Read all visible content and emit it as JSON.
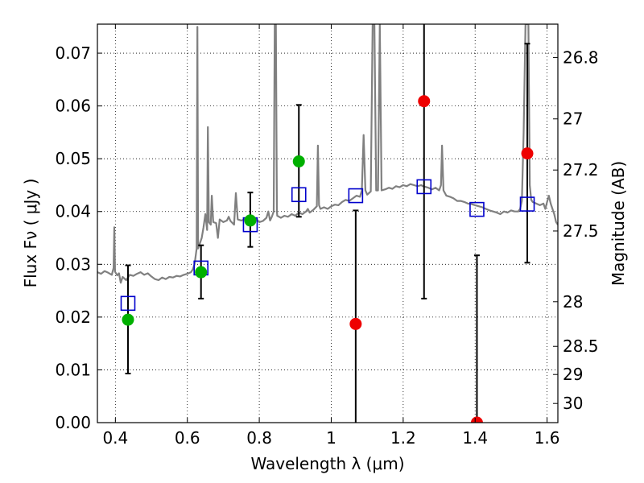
{
  "chart_data": {
    "type": "scatter",
    "xlabel": "Wavelength  λ (μm)",
    "ylabel": "Flux  Fν  ( μJy )",
    "ylabel_right": "Magnitude (AB)",
    "xlim": [
      0.35,
      1.63
    ],
    "ylim": [
      0.0,
      0.0755
    ],
    "grid": true,
    "x_ticks": [
      0.4,
      0.6,
      0.8,
      1.0,
      1.2,
      1.4,
      1.6
    ],
    "x_tick_labels": [
      "0.4",
      "0.6",
      "0.8",
      "1",
      "1.2",
      "1.4",
      "1.6"
    ],
    "y_ticks": [
      0.0,
      0.01,
      0.02,
      0.03,
      0.04,
      0.05,
      0.06,
      0.07
    ],
    "y_tick_labels": [
      "0.00",
      "0.01",
      "0.02",
      "0.03",
      "0.04",
      "0.05",
      "0.06",
      "0.07"
    ],
    "right_ticks": [
      26.8,
      27.0,
      27.2,
      27.5,
      28.0,
      28.5,
      29.0,
      30.0
    ],
    "right_tick_labels": [
      "26.8",
      "27",
      "27.2",
      "27.5",
      "28",
      "28.5",
      "29",
      "30"
    ],
    "colors": {
      "spectrum": "#808080",
      "model": "#0000cc",
      "observed_detected": "#00b000",
      "observed_nondetected": "#ee0000",
      "errorbar": "#000000"
    },
    "series": [
      {
        "kind": "line",
        "color": "#808080",
        "points": [
          [
            0.35,
            0.0285
          ],
          [
            0.36,
            0.0282
          ],
          [
            0.37,
            0.0287
          ],
          [
            0.38,
            0.0284
          ],
          [
            0.39,
            0.028
          ],
          [
            0.395,
            0.0293
          ],
          [
            0.397,
            0.037
          ],
          [
            0.399,
            0.0286
          ],
          [
            0.405,
            0.0279
          ],
          [
            0.41,
            0.0283
          ],
          [
            0.415,
            0.0265
          ],
          [
            0.42,
            0.0276
          ],
          [
            0.43,
            0.027
          ],
          [
            0.44,
            0.028
          ],
          [
            0.45,
            0.0278
          ],
          [
            0.46,
            0.0282
          ],
          [
            0.47,
            0.0285
          ],
          [
            0.48,
            0.028
          ],
          [
            0.49,
            0.0283
          ],
          [
            0.5,
            0.0277
          ],
          [
            0.51,
            0.0272
          ],
          [
            0.52,
            0.027
          ],
          [
            0.53,
            0.0275
          ],
          [
            0.54,
            0.0272
          ],
          [
            0.55,
            0.0276
          ],
          [
            0.56,
            0.0275
          ],
          [
            0.57,
            0.0278
          ],
          [
            0.58,
            0.0277
          ],
          [
            0.59,
            0.028
          ],
          [
            0.6,
            0.0282
          ],
          [
            0.61,
            0.0285
          ],
          [
            0.615,
            0.029
          ],
          [
            0.62,
            0.03
          ],
          [
            0.626,
            0.033
          ],
          [
            0.628,
            0.075
          ],
          [
            0.63,
            0.033
          ],
          [
            0.635,
            0.034
          ],
          [
            0.64,
            0.035
          ],
          [
            0.645,
            0.037
          ],
          [
            0.65,
            0.0395
          ],
          [
            0.655,
            0.0365
          ],
          [
            0.657,
            0.056
          ],
          [
            0.66,
            0.038
          ],
          [
            0.665,
            0.0375
          ],
          [
            0.668,
            0.043
          ],
          [
            0.672,
            0.038
          ],
          [
            0.68,
            0.0378
          ],
          [
            0.685,
            0.035
          ],
          [
            0.69,
            0.0385
          ],
          [
            0.7,
            0.038
          ],
          [
            0.71,
            0.0383
          ],
          [
            0.715,
            0.039
          ],
          [
            0.72,
            0.0382
          ],
          [
            0.73,
            0.0375
          ],
          [
            0.735,
            0.0435
          ],
          [
            0.74,
            0.0385
          ],
          [
            0.75,
            0.0383
          ],
          [
            0.76,
            0.0385
          ],
          [
            0.77,
            0.0378
          ],
          [
            0.78,
            0.0382
          ],
          [
            0.79,
            0.0387
          ],
          [
            0.8,
            0.038
          ],
          [
            0.81,
            0.0382
          ],
          [
            0.82,
            0.0388
          ],
          [
            0.825,
            0.04
          ],
          [
            0.83,
            0.0383
          ],
          [
            0.835,
            0.039
          ],
          [
            0.84,
            0.04
          ],
          [
            0.843,
            0.0755
          ],
          [
            0.846,
            0.0755
          ],
          [
            0.849,
            0.04
          ],
          [
            0.85,
            0.0392
          ],
          [
            0.86,
            0.0388
          ],
          [
            0.87,
            0.0392
          ],
          [
            0.88,
            0.039
          ],
          [
            0.89,
            0.0395
          ],
          [
            0.9,
            0.0392
          ],
          [
            0.91,
            0.0398
          ],
          [
            0.92,
            0.0395
          ],
          [
            0.93,
            0.04
          ],
          [
            0.935,
            0.0405
          ],
          [
            0.94,
            0.0398
          ],
          [
            0.95,
            0.0403
          ],
          [
            0.96,
            0.041
          ],
          [
            0.963,
            0.0525
          ],
          [
            0.966,
            0.0412
          ],
          [
            0.97,
            0.0405
          ],
          [
            0.98,
            0.0408
          ],
          [
            0.99,
            0.0405
          ],
          [
            1.0,
            0.041
          ],
          [
            1.01,
            0.0413
          ],
          [
            1.02,
            0.0412
          ],
          [
            1.03,
            0.0418
          ],
          [
            1.04,
            0.0422
          ],
          [
            1.05,
            0.042
          ],
          [
            1.06,
            0.0425
          ],
          [
            1.07,
            0.043
          ],
          [
            1.08,
            0.0428
          ],
          [
            1.085,
            0.044
          ],
          [
            1.09,
            0.0545
          ],
          [
            1.095,
            0.044
          ],
          [
            1.1,
            0.0432
          ],
          [
            1.11,
            0.0438
          ],
          [
            1.115,
            0.0755
          ],
          [
            1.12,
            0.0755
          ],
          [
            1.125,
            0.044
          ],
          [
            1.13,
            0.044
          ],
          [
            1.135,
            0.0755
          ],
          [
            1.14,
            0.044
          ],
          [
            1.15,
            0.0442
          ],
          [
            1.16,
            0.0445
          ],
          [
            1.17,
            0.0443
          ],
          [
            1.18,
            0.0448
          ],
          [
            1.19,
            0.0446
          ],
          [
            1.2,
            0.045
          ],
          [
            1.21,
            0.0448
          ],
          [
            1.22,
            0.0452
          ],
          [
            1.23,
            0.045
          ],
          [
            1.24,
            0.0448
          ],
          [
            1.25,
            0.045
          ],
          [
            1.255,
            0.0448
          ],
          [
            1.26,
            0.0447
          ],
          [
            1.27,
            0.0445
          ],
          [
            1.28,
            0.0442
          ],
          [
            1.29,
            0.0445
          ],
          [
            1.3,
            0.044
          ],
          [
            1.305,
            0.045
          ],
          [
            1.308,
            0.0525
          ],
          [
            1.312,
            0.044
          ],
          [
            1.32,
            0.043
          ],
          [
            1.33,
            0.0428
          ],
          [
            1.34,
            0.0425
          ],
          [
            1.35,
            0.042
          ],
          [
            1.36,
            0.042
          ],
          [
            1.37,
            0.0418
          ],
          [
            1.38,
            0.0415
          ],
          [
            1.39,
            0.0414
          ],
          [
            1.4,
            0.0412
          ],
          [
            1.41,
            0.041
          ],
          [
            1.42,
            0.0408
          ],
          [
            1.43,
            0.0405
          ],
          [
            1.44,
            0.0402
          ],
          [
            1.45,
            0.04
          ],
          [
            1.46,
            0.0398
          ],
          [
            1.47,
            0.0395
          ],
          [
            1.48,
            0.04
          ],
          [
            1.49,
            0.0398
          ],
          [
            1.5,
            0.0402
          ],
          [
            1.51,
            0.04
          ],
          [
            1.52,
            0.04
          ],
          [
            1.525,
            0.0405
          ],
          [
            1.53,
            0.042
          ],
          [
            1.535,
            0.055
          ],
          [
            1.54,
            0.0755
          ],
          [
            1.548,
            0.0755
          ],
          [
            1.552,
            0.045
          ],
          [
            1.556,
            0.0422
          ],
          [
            1.56,
            0.0418
          ],
          [
            1.57,
            0.0415
          ],
          [
            1.58,
            0.0412
          ],
          [
            1.59,
            0.0415
          ],
          [
            1.595,
            0.0405
          ],
          [
            1.6,
            0.0418
          ],
          [
            1.605,
            0.043
          ],
          [
            1.61,
            0.0415
          ],
          [
            1.62,
            0.0395
          ],
          [
            1.625,
            0.038
          ],
          [
            1.63,
            0.0375
          ]
        ]
      },
      {
        "kind": "model_squares",
        "color": "#0000cc",
        "x": [
          0.435,
          0.638,
          0.775,
          0.91,
          1.068,
          1.258,
          1.405,
          1.545
        ],
        "y": [
          0.0226,
          0.0293,
          0.0375,
          0.0432,
          0.043,
          0.0447,
          0.0404,
          0.0414
        ]
      },
      {
        "kind": "observed",
        "x": [
          0.435,
          0.638,
          0.775,
          0.91,
          1.068,
          1.258,
          1.405,
          1.545
        ],
        "y": [
          0.0195,
          0.0285,
          0.0383,
          0.0495,
          0.0187,
          0.0609,
          0.0,
          0.051
        ],
        "yerr_low": [
          0.0093,
          0.0235,
          0.0333,
          0.039,
          0.0,
          0.0235,
          0.0,
          0.0303
        ],
        "yerr_high": [
          0.0298,
          0.0336,
          0.0436,
          0.0602,
          0.0402,
          0.0755,
          0.0317,
          0.0718
        ],
        "colors": [
          "#00b000",
          "#00b000",
          "#00b000",
          "#00b000",
          "#ee0000",
          "#ee0000",
          "#ee0000",
          "#ee0000"
        ]
      }
    ]
  }
}
